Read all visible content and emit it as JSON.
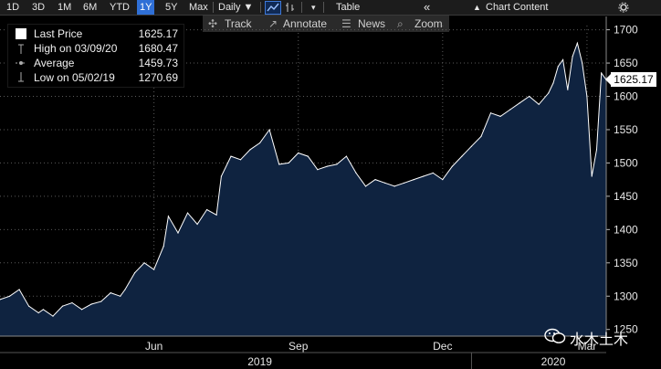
{
  "toolbar": {
    "ranges": [
      "1D",
      "3D",
      "1M",
      "6M",
      "YTD",
      "1Y",
      "5Y",
      "Max"
    ],
    "active_range": "1Y",
    "frequency": "Daily ▼",
    "table_label": "Table",
    "chart_content_label": "Chart Content",
    "collapse_glyph": "«",
    "more_glyph": "▾"
  },
  "subbar": {
    "track": "Track",
    "annotate": "Annotate",
    "news": "News",
    "zoom": "Zoom"
  },
  "legend": {
    "last_price_label": "Last Price",
    "last_price_value": "1625.17",
    "high_label": "High on 03/09/20",
    "high_value": "1680.47",
    "average_label": "Average",
    "average_value": "1459.73",
    "low_label": "Low on 05/02/19",
    "low_value": "1270.69"
  },
  "price_tag": "1625.17",
  "watermark": "水木土木",
  "chart_data": {
    "type": "area",
    "title": "",
    "xlabel": "",
    "ylabel": "",
    "ylim": [
      1240,
      1720
    ],
    "y_ticks": [
      1250,
      1300,
      1350,
      1400,
      1450,
      1500,
      1550,
      1600,
      1650,
      1700
    ],
    "x_ticks": [
      {
        "label": "Jun",
        "x": 6.3
      },
      {
        "label": "Sep",
        "x": 9.3
      },
      {
        "label": "Dec",
        "x": 12.3
      },
      {
        "label": "Mar",
        "x": 15.3
      }
    ],
    "year_labels": [
      {
        "label": "2019",
        "x": 8.5
      },
      {
        "label": "2020",
        "x": 14.6
      }
    ],
    "year_boundary_x": 12.9,
    "x_unit": "months since Jan 2019",
    "xlim": [
      3.1,
      15.7
    ],
    "fill_color": "#0f2340",
    "line_color": "#ffffff",
    "last_price": 1625.17,
    "series": [
      {
        "x": [
          3.1,
          3.3,
          3.5,
          3.7,
          3.9,
          4.0,
          4.2,
          4.4,
          4.6,
          4.8,
          5.0,
          5.2,
          5.4,
          5.6,
          5.7,
          5.9,
          6.1,
          6.3,
          6.5,
          6.6,
          6.8,
          7.0,
          7.2,
          7.4,
          7.6,
          7.7,
          7.9,
          8.1,
          8.3,
          8.5,
          8.7,
          8.9,
          9.1,
          9.3,
          9.5,
          9.7,
          9.9,
          10.1,
          10.3,
          10.5,
          10.7,
          10.9,
          11.1,
          11.3,
          11.5,
          11.7,
          11.9,
          12.1,
          12.3,
          12.5,
          12.7,
          12.9,
          13.1,
          13.3,
          13.5,
          13.7,
          13.9,
          14.1,
          14.3,
          14.5,
          14.6,
          14.7,
          14.8,
          14.9,
          15.0,
          15.1,
          15.2,
          15.3,
          15.4,
          15.5,
          15.6,
          15.7
        ],
        "y": [
          1295,
          1300,
          1310,
          1285,
          1275,
          1280,
          1270,
          1285,
          1290,
          1280,
          1288,
          1292,
          1305,
          1300,
          1310,
          1335,
          1350,
          1340,
          1375,
          1420,
          1395,
          1425,
          1408,
          1430,
          1422,
          1480,
          1510,
          1505,
          1520,
          1530,
          1550,
          1498,
          1500,
          1515,
          1510,
          1490,
          1495,
          1498,
          1510,
          1485,
          1465,
          1475,
          1470,
          1465,
          1470,
          1475,
          1480,
          1485,
          1475,
          1495,
          1510,
          1525,
          1540,
          1575,
          1570,
          1580,
          1590,
          1600,
          1588,
          1605,
          1620,
          1645,
          1655,
          1610,
          1660,
          1680,
          1650,
          1600,
          1480,
          1520,
          1635,
          1625
        ]
      }
    ]
  }
}
